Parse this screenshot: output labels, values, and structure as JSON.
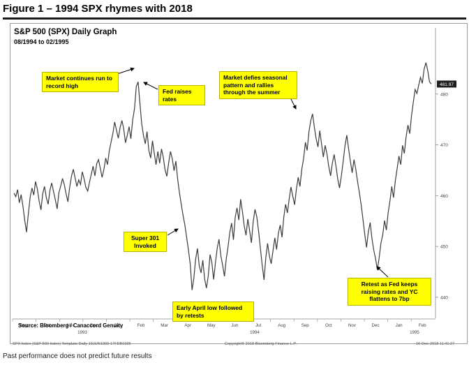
{
  "figure_title": "Figure 1 – 1994 SPX rhymes with 2018",
  "disclaimer": "Past performance does not predict future results",
  "source_note": "Source: Bloomberg / Canaccord Genuity",
  "footer": {
    "left": "SPX Index (S&P 500 Index) Template  Daily 19JUN1993-17FEB1995",
    "middle": "Copyright® 2018 Bloomberg Finance L.P.",
    "right": "16-Dec-2018 11:41:27"
  },
  "colors": {
    "line": "#3a3a3a",
    "callout": "#ffff00",
    "last_value_tag": "#1f1f1f"
  },
  "callouts": [
    {
      "id": "record-high",
      "text": "Market continues run to record high"
    },
    {
      "id": "fed-raises",
      "text": "Fed raises rates"
    },
    {
      "id": "super-301",
      "text": "Super 301 Invoked"
    },
    {
      "id": "april-low",
      "text": "Early April low followed by retests"
    },
    {
      "id": "seasonal",
      "text": "Market defies seasonal pattern and rallies through the summer"
    },
    {
      "id": "retest-fed",
      "text": "Retest as Fed keeps raising rates and YC flattens to 7bp"
    }
  ],
  "chart_data": {
    "type": "line",
    "title": "S&P 500 (SPX) Daily Graph",
    "subtitle": "08/1994 to 02/1995",
    "ylim": [
      436,
      490
    ],
    "yticks": [
      440,
      450,
      460,
      470,
      480
    ],
    "x_month_labels": [
      "Sep",
      "Oct",
      "Nov",
      "Dec",
      "Jan",
      "Feb",
      "Mar",
      "Apr",
      "May",
      "Jun",
      "Jul",
      "Aug",
      "Sep",
      "Oct",
      "Nov",
      "Dec",
      "Jan",
      "Feb"
    ],
    "x_year_labels": [
      "1993",
      "1994",
      "1995"
    ],
    "last_value": "481.97",
    "grid": false,
    "series": [
      {
        "values": [
          460.5,
          459.8,
          461.2,
          458.6,
          460.2,
          457.9,
          455.1,
          452.8,
          456.4,
          459.7,
          461.5,
          460.1,
          462.8,
          461.3,
          458.9,
          457.2,
          460.4,
          461.8,
          459.6,
          458.3,
          461.1,
          462.5,
          460.8,
          459.2,
          457.4,
          460.6,
          461.9,
          463.4,
          462.1,
          460.3,
          458.8,
          461.7,
          463.9,
          465.2,
          463.5,
          461.8,
          463.1,
          462.2,
          464.7,
          463.3,
          461.6,
          460.9,
          462.7,
          464.2,
          465.8,
          463.9,
          466.3,
          467.1,
          465.4,
          463.6,
          465.2,
          467.4,
          466.1,
          468.8,
          470.6,
          472.3,
          474.5,
          472.9,
          471.3,
          473.4,
          474.8,
          473.2,
          470.4,
          471.9,
          473.6,
          471.2,
          474.9,
          477.1,
          481.5,
          482.4,
          478.3,
          474.2,
          471.8,
          470.2,
          472.6,
          468.9,
          467.4,
          470.8,
          468.3,
          466.1,
          468.7,
          466.4,
          469.2,
          467.6,
          465.1,
          463.8,
          466.5,
          468.7,
          467.3,
          464.9,
          466.8,
          463.2,
          460.6,
          458.3,
          456.1,
          454.2,
          451.8,
          449.3,
          446.5,
          441.4,
          443.8,
          447.5,
          449.6,
          446.2,
          444.8,
          447.3,
          443.6,
          441.8,
          444.2,
          448.4,
          446.9,
          443.5,
          446.8,
          449.7,
          451.4,
          448.2,
          446.3,
          444.1,
          447.6,
          449.9,
          452.8,
          454.6,
          451.3,
          455.7,
          457.6,
          455.2,
          459.3,
          456.8,
          454.1,
          452.2,
          455.4,
          453.1,
          450.7,
          454.9,
          457.3,
          455.8,
          452.9,
          449.6,
          446.3,
          443.4,
          447.8,
          450.6,
          448.1,
          446.6,
          449.2,
          451.7,
          449.4,
          452.6,
          454.2,
          451.8,
          455.7,
          458.3,
          456.6,
          459.4,
          461.7,
          459.9,
          458.2,
          461.3,
          463.6,
          461.8,
          465.2,
          467.3,
          470.5,
          468.9,
          472.6,
          474.8,
          476.1,
          473.4,
          471.2,
          469.6,
          472.8,
          470.1,
          467.6,
          469.9,
          468.2,
          465.7,
          463.9,
          466.4,
          468.1,
          465.8,
          463.2,
          461.5,
          463.9,
          466.7,
          469.8,
          471.9,
          469.3,
          466.8,
          464.5,
          467.1,
          465.3,
          462.8,
          460.6,
          458.2,
          455.3,
          452.4,
          449.8,
          452.9,
          454.7,
          451.6,
          449.3,
          447.6,
          445.4,
          447.8,
          450.6,
          452.3,
          455.1,
          453.2,
          456.6,
          458.9,
          461.8,
          459.6,
          462.9,
          465.3,
          467.8,
          466.1,
          469.9,
          468.3,
          471.6,
          473.9,
          472.2,
          475.7,
          478.4,
          480.9,
          480.1,
          481.8,
          483.3,
          482.1,
          484.9,
          486.2,
          484.7,
          482.4,
          481.97
        ]
      }
    ]
  }
}
